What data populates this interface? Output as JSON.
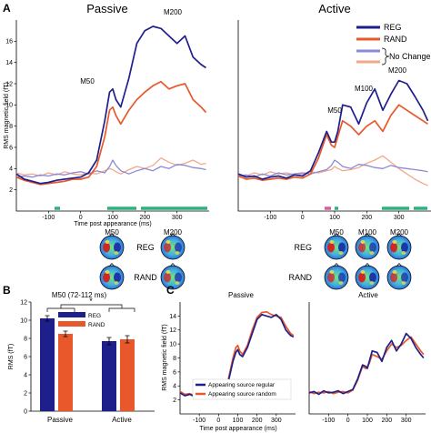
{
  "panels": {
    "a": "A",
    "b": "B",
    "c": "C"
  },
  "panel_a": {
    "titles": {
      "passive": "Passive",
      "active": "Active"
    },
    "ylabel": "RMS magnetic field (fT)",
    "xlabel": "Time post appearance (ms)",
    "legend": [
      "REG",
      "RAND",
      "No Change"
    ],
    "annotations": {
      "passive": [
        "M50",
        "M200"
      ],
      "active": [
        "M50",
        "M100",
        "M200"
      ]
    },
    "topo": {
      "components": [
        "M50",
        "M100",
        "M200"
      ],
      "conditions": [
        "REG",
        "RAND"
      ]
    }
  },
  "panel_b": {
    "title": "M50 (72-112 ms)",
    "ylabel": "RMS (fT)",
    "significance": "*",
    "legend": [
      "REG",
      "RAND"
    ]
  },
  "panel_c": {
    "titles": {
      "passive": "Passive",
      "active": "Active"
    },
    "ylabel": "RMS magnetic field (fT)",
    "xlabel": "Time post appearance (ms)",
    "legend": [
      "Appearing source regular",
      "Appearing source random"
    ]
  },
  "colors": {
    "reg": "#1f1f8c",
    "rand": "#e8582a",
    "nochange_reg": "#8a8ad6",
    "nochange_rand": "#f2a88a",
    "sig": "#2ab37a",
    "sig_alt": "#d45fa0"
  },
  "chart_data": [
    {
      "type": "line",
      "panel": "A-Passive",
      "title": "Passive",
      "ylabel": "RMS magnetic field (fT)",
      "xlabel": "Time post appearance (ms)",
      "xlim": [
        -200,
        400
      ],
      "ylim": [
        0,
        18
      ],
      "xticks": [
        -100,
        0,
        100,
        200,
        300
      ],
      "yticks": [
        2,
        4,
        6,
        8,
        10,
        12,
        14,
        16
      ],
      "x": [
        -200,
        -175,
        -150,
        -125,
        -100,
        -75,
        -50,
        -25,
        0,
        25,
        50,
        75,
        90,
        100,
        110,
        125,
        150,
        175,
        200,
        225,
        250,
        275,
        300,
        325,
        350,
        375,
        390
      ],
      "series": [
        {
          "name": "REG",
          "values": [
            3.5,
            3.0,
            2.8,
            2.6,
            2.7,
            2.9,
            3.0,
            3.1,
            3.2,
            3.6,
            4.8,
            8.5,
            11.2,
            11.5,
            10.5,
            9.8,
            12.5,
            15.8,
            17.0,
            17.4,
            17.2,
            16.5,
            15.8,
            16.5,
            14.5,
            13.8,
            13.5
          ]
        },
        {
          "name": "RAND",
          "values": [
            3.2,
            2.9,
            2.7,
            2.5,
            2.6,
            2.7,
            2.8,
            3.0,
            3.0,
            3.2,
            4.2,
            7.0,
            9.5,
            9.8,
            9.0,
            8.2,
            9.5,
            10.5,
            11.2,
            11.8,
            12.2,
            11.5,
            11.8,
            12.0,
            10.5,
            9.8,
            9.3
          ]
        },
        {
          "name": "No Change REG",
          "values": [
            3.2,
            3.3,
            3.2,
            3.4,
            3.3,
            3.5,
            3.4,
            3.6,
            3.7,
            3.5,
            3.8,
            3.6,
            4.2,
            4.8,
            4.3,
            3.8,
            3.5,
            3.8,
            4.0,
            3.8,
            4.2,
            4.0,
            4.4,
            4.3,
            4.1,
            4.0,
            3.9
          ]
        },
        {
          "name": "No Change RAND",
          "values": [
            3.6,
            3.4,
            3.5,
            3.3,
            3.6,
            3.4,
            3.7,
            3.5,
            3.4,
            3.6,
            3.5,
            3.8,
            4.0,
            3.9,
            3.7,
            3.5,
            3.9,
            4.2,
            4.0,
            4.3,
            5.0,
            4.6,
            4.3,
            4.5,
            4.8,
            4.4,
            4.5
          ]
        }
      ],
      "annotations": [
        "M50",
        "M200"
      ]
    },
    {
      "type": "line",
      "panel": "A-Active",
      "title": "Active",
      "xlabel": "Time post appearance (ms)",
      "xlim": [
        -200,
        400
      ],
      "ylim": [
        0,
        18
      ],
      "xticks": [
        -100,
        0,
        100,
        200,
        300
      ],
      "x": [
        -200,
        -175,
        -150,
        -125,
        -100,
        -75,
        -50,
        -25,
        0,
        25,
        50,
        75,
        90,
        100,
        110,
        125,
        150,
        175,
        200,
        225,
        250,
        275,
        300,
        325,
        350,
        375,
        390
      ],
      "series": [
        {
          "name": "REG",
          "values": [
            3.5,
            3.2,
            3.3,
            3.0,
            3.2,
            3.3,
            3.1,
            3.4,
            3.3,
            3.8,
            5.5,
            7.5,
            6.5,
            6.5,
            7.5,
            10.0,
            9.8,
            8.2,
            10.2,
            11.5,
            9.5,
            11.0,
            12.3,
            12.0,
            10.8,
            9.5,
            8.5
          ]
        },
        {
          "name": "RAND",
          "values": [
            3.3,
            3.0,
            3.1,
            2.9,
            3.0,
            3.1,
            3.0,
            3.2,
            3.1,
            3.5,
            5.0,
            7.2,
            6.2,
            6.0,
            7.0,
            8.5,
            8.0,
            7.2,
            8.0,
            8.5,
            7.5,
            9.0,
            10.0,
            9.5,
            9.0,
            8.5,
            8.2
          ]
        },
        {
          "name": "No Change REG",
          "values": [
            3.3,
            3.4,
            3.2,
            3.5,
            3.3,
            3.6,
            3.4,
            3.5,
            3.6,
            3.5,
            3.7,
            3.9,
            4.3,
            4.8,
            4.6,
            4.2,
            4.0,
            4.4,
            4.3,
            4.1,
            4.0,
            4.3,
            4.1,
            4.0,
            3.9,
            3.8,
            3.7
          ]
        },
        {
          "name": "No Change RAND",
          "values": [
            3.5,
            3.3,
            3.6,
            3.4,
            3.7,
            3.5,
            3.6,
            3.4,
            3.5,
            3.7,
            3.6,
            3.8,
            3.9,
            4.2,
            4.0,
            3.8,
            3.9,
            4.1,
            4.5,
            4.8,
            5.2,
            4.6,
            4.0,
            3.5,
            3.0,
            2.6,
            2.4
          ]
        }
      ],
      "annotations": [
        "M50",
        "M100",
        "M200"
      ]
    },
    {
      "type": "bar",
      "panel": "B",
      "title": "M50 (72-112 ms)",
      "ylabel": "RMS (fT)",
      "ylim": [
        0,
        12
      ],
      "yticks": [
        0,
        2,
        4,
        6,
        8,
        10,
        12
      ],
      "categories": [
        "Passive",
        "Active"
      ],
      "series": [
        {
          "name": "REG",
          "values": [
            10.2,
            7.7
          ],
          "errors": [
            0.3,
            0.4
          ]
        },
        {
          "name": "RAND",
          "values": [
            8.5,
            7.9
          ],
          "errors": [
            0.3,
            0.4
          ]
        }
      ],
      "significance": "*"
    },
    {
      "type": "line",
      "panel": "C-Passive",
      "title": "Passive",
      "ylabel": "RMS magnetic field (fT)",
      "xlabel": "Time post appearance (ms)",
      "xlim": [
        -200,
        400
      ],
      "ylim": [
        0,
        16
      ],
      "xticks": [
        -100,
        0,
        100,
        200,
        300
      ],
      "yticks": [
        2,
        4,
        6,
        8,
        10,
        12,
        14
      ],
      "x": [
        -200,
        -175,
        -150,
        -125,
        -100,
        -75,
        -50,
        -25,
        0,
        25,
        50,
        75,
        90,
        100,
        110,
        125,
        150,
        175,
        200,
        225,
        250,
        275,
        300,
        325,
        350,
        375,
        390
      ],
      "series": [
        {
          "name": "Appearing source regular",
          "values": [
            3.0,
            2.6,
            2.8,
            2.5,
            3.0,
            2.8,
            3.2,
            2.9,
            3.0,
            3.4,
            4.5,
            7.5,
            8.8,
            9.2,
            8.5,
            8.2,
            9.5,
            11.5,
            13.5,
            14.2,
            14.0,
            13.8,
            14.2,
            13.5,
            12.0,
            11.2,
            11.0
          ]
        },
        {
          "name": "Appearing source random",
          "values": [
            3.2,
            2.8,
            2.9,
            2.6,
            2.8,
            3.0,
            3.0,
            3.1,
            3.1,
            3.5,
            4.8,
            8.0,
            9.5,
            9.8,
            9.0,
            8.5,
            9.8,
            12.0,
            13.8,
            14.5,
            14.6,
            14.2,
            14.0,
            13.8,
            12.5,
            11.5,
            11.2
          ]
        }
      ]
    },
    {
      "type": "line",
      "panel": "C-Active",
      "title": "Active",
      "xlabel": "Time post appearance (ms)",
      "xlim": [
        -200,
        400
      ],
      "ylim": [
        0,
        16
      ],
      "xticks": [
        -100,
        0,
        100,
        200,
        300
      ],
      "x": [
        -200,
        -175,
        -150,
        -125,
        -100,
        -75,
        -50,
        -25,
        0,
        25,
        50,
        75,
        90,
        100,
        110,
        125,
        150,
        175,
        200,
        225,
        250,
        275,
        300,
        325,
        350,
        375,
        390
      ],
      "series": [
        {
          "name": "Appearing source regular",
          "values": [
            3.0,
            3.2,
            2.8,
            3.3,
            3.0,
            3.1,
            3.3,
            2.9,
            3.2,
            3.5,
            5.0,
            7.0,
            6.8,
            6.5,
            7.5,
            9.0,
            8.8,
            7.5,
            9.5,
            10.5,
            9.0,
            10.0,
            11.5,
            10.8,
            9.5,
            8.5,
            8.0
          ]
        },
        {
          "name": "Appearing source random",
          "values": [
            3.2,
            2.9,
            3.1,
            3.0,
            3.2,
            2.9,
            3.1,
            3.2,
            3.0,
            3.4,
            4.8,
            6.8,
            6.5,
            6.8,
            7.2,
            8.5,
            8.2,
            7.8,
            9.0,
            10.0,
            9.5,
            9.8,
            10.5,
            11.0,
            10.0,
            9.0,
            8.5
          ]
        }
      ]
    }
  ]
}
